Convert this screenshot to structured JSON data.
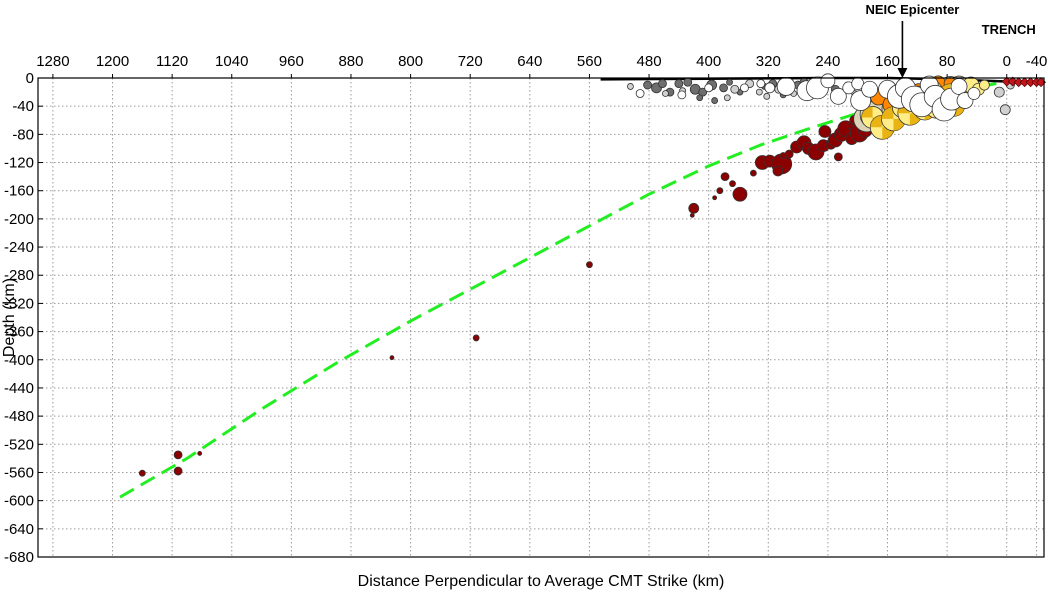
{
  "chart_data": {
    "type": "scatter",
    "xlabel": "Distance Perpendicular to Average CMT Strike (km)",
    "ylabel": "Depth (km)",
    "xlim": [
      1300,
      -50
    ],
    "ylim": [
      -680,
      0
    ],
    "x_ticks": [
      1280,
      1200,
      1120,
      1040,
      960,
      880,
      800,
      720,
      640,
      560,
      480,
      400,
      320,
      240,
      160,
      80,
      0,
      -40
    ],
    "y_ticks": [
      0,
      -40,
      -80,
      -120,
      -160,
      -200,
      -240,
      -280,
      -320,
      -360,
      -400,
      -440,
      -480,
      -520,
      -560,
      -600,
      -640,
      -680
    ],
    "x_tick_position": "top",
    "grid": true,
    "annotations": [
      {
        "text": "NEIC Epicenter",
        "x": 140,
        "y": 0
      },
      {
        "text": "TRENCH",
        "x": 0,
        "y": 0
      }
    ],
    "topography": {
      "color": "#000000",
      "x": [
        545,
        400,
        240,
        160,
        80,
        0,
        -40
      ],
      "y": [
        -2,
        -1,
        0,
        0,
        -2,
        -5,
        -7
      ]
    },
    "slab_model": {
      "color": "#22ee22",
      "style": "dashed",
      "x": [
        1190,
        1100,
        1000,
        900,
        800,
        720,
        640,
        560,
        480,
        400,
        330,
        260,
        200,
        150,
        100,
        60,
        20,
        0
      ],
      "y": [
        -595,
        -540,
        -470,
        -405,
        -345,
        -300,
        -255,
        -210,
        -165,
        -125,
        -95,
        -70,
        -50,
        -38,
        -25,
        -16,
        -9,
        -6
      ]
    },
    "trench_markers": {
      "color": "#c0151a",
      "x": [
        0,
        -8,
        -16,
        -24,
        -32,
        -40,
        -46
      ],
      "y": [
        -5,
        -5,
        -6,
        -6,
        -6,
        -6,
        -6
      ]
    },
    "series": [
      {
        "color": "#8b0000",
        "points": [
          [
            1160,
            -561,
            3
          ],
          [
            1112,
            -535,
            4
          ],
          [
            1112,
            -558,
            4
          ],
          [
            1083,
            -533,
            2
          ],
          [
            825,
            -397,
            2
          ],
          [
            712,
            -369,
            3
          ],
          [
            560,
            -265,
            3
          ],
          [
            420,
            -185,
            5
          ],
          [
            422,
            -195,
            2
          ],
          [
            358,
            -165,
            7
          ],
          [
            368,
            -150,
            3
          ],
          [
            378,
            -140,
            4
          ],
          [
            385,
            -160,
            3
          ],
          [
            392,
            -170,
            2
          ],
          [
            340,
            -135,
            3
          ],
          [
            328,
            -120,
            7
          ],
          [
            318,
            -118,
            6
          ],
          [
            302,
            -122,
            10
          ],
          [
            307,
            -132,
            5
          ],
          [
            292,
            -108,
            4
          ],
          [
            300,
            -110,
            3
          ],
          [
            282,
            -98,
            6
          ],
          [
            272,
            -92,
            7
          ],
          [
            266,
            -100,
            6
          ],
          [
            256,
            -105,
            8
          ],
          [
            246,
            -96,
            6
          ],
          [
            236,
            -94,
            5
          ],
          [
            226,
            -112,
            4
          ],
          [
            230,
            -88,
            7
          ],
          [
            244,
            -76,
            6
          ],
          [
            222,
            -80,
            7
          ],
          [
            216,
            -72,
            8
          ],
          [
            208,
            -86,
            6
          ],
          [
            198,
            -78,
            9
          ],
          [
            190,
            -74,
            7
          ],
          [
            183,
            -68,
            6
          ],
          [
            176,
            -62,
            5
          ],
          [
            196,
            -66,
            4
          ],
          [
            204,
            -60,
            5
          ],
          [
            210,
            -68,
            3
          ]
        ]
      },
      {
        "color": "#dcd4b8",
        "points": [
          [
            188,
            -58,
            13
          ],
          [
            178,
            -52,
            14
          ],
          [
            170,
            -47,
            13
          ],
          [
            166,
            -68,
            12
          ],
          [
            158,
            -60,
            11
          ],
          [
            150,
            -44,
            13
          ],
          [
            140,
            -36,
            14
          ],
          [
            128,
            -28,
            11
          ],
          [
            112,
            -22,
            10
          ],
          [
            100,
            -30,
            12
          ],
          [
            88,
            -18,
            11
          ],
          [
            76,
            -12,
            10
          ],
          [
            64,
            -10,
            9
          ]
        ]
      },
      {
        "color": "#ff8800",
        "points": [
          [
            172,
            -27,
            8
          ],
          [
            154,
            -38,
            9
          ],
          [
            134,
            -50,
            8
          ],
          [
            118,
            -18,
            7
          ],
          [
            92,
            -7,
            7
          ],
          [
            76,
            -8,
            6
          ],
          [
            62,
            -30,
            5
          ]
        ]
      },
      {
        "color": "#ffee88",
        "points": [
          [
            180,
            -56,
            11
          ],
          [
            167,
            -70,
            12
          ],
          [
            152,
            -58,
            12
          ],
          [
            140,
            -42,
            10
          ],
          [
            130,
            -50,
            12
          ],
          [
            120,
            -30,
            13
          ],
          [
            110,
            -44,
            11
          ],
          [
            102,
            -20,
            12
          ],
          [
            94,
            -40,
            12
          ],
          [
            86,
            -35,
            11
          ],
          [
            76,
            -24,
            11
          ],
          [
            70,
            -40,
            10
          ],
          [
            60,
            -28,
            9
          ],
          [
            52,
            -18,
            8
          ],
          [
            48,
            -10,
            8
          ],
          [
            38,
            -16,
            6
          ],
          [
            30,
            -10,
            5
          ]
        ]
      },
      {
        "color": "#6e6e6e",
        "points": [
          [
            482,
            -10,
            4
          ],
          [
            470,
            -14,
            5
          ],
          [
            462,
            -8,
            4
          ],
          [
            452,
            -20,
            4
          ],
          [
            440,
            -8,
            4
          ],
          [
            428,
            -6,
            4
          ],
          [
            418,
            -16,
            5
          ],
          [
            408,
            -20,
            4
          ],
          [
            412,
            -28,
            3
          ],
          [
            396,
            -10,
            5
          ],
          [
            392,
            -32,
            3
          ],
          [
            380,
            -14,
            4
          ],
          [
            372,
            -6,
            3
          ],
          [
            358,
            -20,
            3
          ],
          [
            325,
            -12,
            3
          ],
          [
            314,
            -8,
            4
          ],
          [
            300,
            -24,
            3
          ],
          [
            280,
            -10,
            4
          ],
          [
            272,
            -6,
            4
          ],
          [
            262,
            -14,
            3
          ],
          [
            252,
            -10,
            3
          ],
          [
            238,
            -8,
            3
          ],
          [
            230,
            -16,
            4
          ]
        ]
      },
      {
        "color": "#d0d0d0",
        "points": [
          [
            505,
            -12,
            3
          ],
          [
            458,
            -22,
            3
          ],
          [
            435,
            -18,
            3
          ],
          [
            375,
            -28,
            3
          ],
          [
            365,
            -16,
            4
          ],
          [
            345,
            -8,
            4
          ],
          [
            332,
            -20,
            3
          ],
          [
            322,
            -26,
            3
          ],
          [
            306,
            -16,
            4
          ],
          [
            298,
            -6,
            3
          ],
          [
            286,
            -22,
            3
          ],
          [
            256,
            -22,
            3
          ],
          [
            246,
            -4,
            3
          ],
          [
            214,
            -10,
            3
          ],
          [
            204,
            -22,
            3
          ],
          [
            10,
            -20,
            5
          ],
          [
            2,
            -45,
            5
          ],
          [
            -5,
            -10,
            4
          ]
        ]
      },
      {
        "color": "#ffffff",
        "points": [
          [
            492,
            -22,
            4
          ],
          [
            436,
            -24,
            4
          ],
          [
            400,
            -14,
            4
          ],
          [
            352,
            -14,
            4
          ],
          [
            330,
            -8,
            4
          ],
          [
            318,
            -14,
            5
          ],
          [
            296,
            -12,
            9
          ],
          [
            268,
            -18,
            10
          ],
          [
            254,
            -14,
            11
          ],
          [
            240,
            -4,
            7
          ],
          [
            226,
            -26,
            8
          ],
          [
            212,
            -14,
            6
          ],
          [
            196,
            -32,
            10
          ],
          [
            200,
            -8,
            6
          ],
          [
            184,
            -16,
            8
          ],
          [
            160,
            -16,
            9
          ],
          [
            144,
            -26,
            12
          ],
          [
            136,
            -14,
            10
          ],
          [
            124,
            -30,
            13
          ],
          [
            114,
            -38,
            12
          ],
          [
            104,
            -10,
            9
          ],
          [
            96,
            -26,
            11
          ],
          [
            84,
            -44,
            12
          ],
          [
            74,
            -30,
            11
          ],
          [
            64,
            -12,
            8
          ],
          [
            56,
            -32,
            8
          ],
          [
            44,
            -22,
            6
          ]
        ]
      }
    ]
  }
}
